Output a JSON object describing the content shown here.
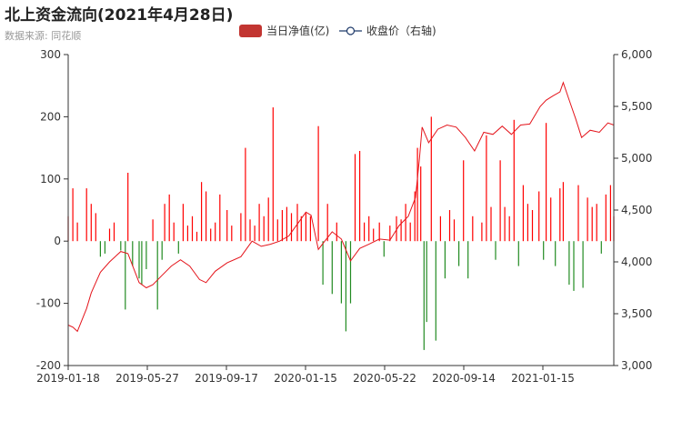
{
  "title": "北上资金流向(2021年4月28日)",
  "subtitle": "数据来源: 同花顺",
  "colors": {
    "inflow": "#ff0000",
    "outflow": "#228b22",
    "close_line": "#e4141b",
    "legend_bar": "#c23531",
    "axis": "#333333"
  },
  "chart_data": {
    "type": "bar",
    "legend": [
      {
        "name": "当日净值(亿)",
        "marker": "bar"
      },
      {
        "name": "收盘价（右轴)",
        "marker": "line"
      }
    ],
    "legend_position": "top-center",
    "x_axis": {
      "tick_labels": [
        "2019-01-18",
        "2019-05-27",
        "2019-09-17",
        "2020-01-15",
        "2020-05-22",
        "2020-09-14",
        "2021-01-15"
      ],
      "start": "2019-01-18",
      "end": "2021-04-28"
    },
    "y_left": {
      "ylim": [
        -200,
        300
      ],
      "ticks": [
        -200,
        -100,
        0,
        100,
        200,
        300
      ]
    },
    "y_right": {
      "ylim": [
        3000,
        6000
      ],
      "ticks": [
        "3,000",
        "3,500",
        "4,000",
        "4,500",
        "5,000",
        "5,500",
        "6,000"
      ]
    },
    "close_series": {
      "name": "收盘价（右轴)",
      "points": [
        [
          "2019-01-18",
          3390
        ],
        [
          "2019-01-25",
          3370
        ],
        [
          "2019-02-01",
          3330
        ],
        [
          "2019-02-15",
          3550
        ],
        [
          "2019-02-22",
          3700
        ],
        [
          "2019-03-01",
          3800
        ],
        [
          "2019-03-08",
          3900
        ],
        [
          "2019-03-22",
          4000
        ],
        [
          "2019-04-08",
          4100
        ],
        [
          "2019-04-19",
          4080
        ],
        [
          "2019-05-06",
          3800
        ],
        [
          "2019-05-17",
          3750
        ],
        [
          "2019-05-27",
          3780
        ],
        [
          "2019-06-10",
          3870
        ],
        [
          "2019-06-24",
          3960
        ],
        [
          "2019-07-08",
          4020
        ],
        [
          "2019-07-22",
          3960
        ],
        [
          "2019-08-06",
          3830
        ],
        [
          "2019-08-16",
          3800
        ],
        [
          "2019-08-30",
          3910
        ],
        [
          "2019-09-17",
          3990
        ],
        [
          "2019-10-08",
          4050
        ],
        [
          "2019-10-25",
          4200
        ],
        [
          "2019-11-08",
          4150
        ],
        [
          "2019-11-22",
          4170
        ],
        [
          "2019-12-06",
          4200
        ],
        [
          "2019-12-20",
          4250
        ],
        [
          "2020-01-06",
          4400
        ],
        [
          "2020-01-15",
          4480
        ],
        [
          "2020-01-23",
          4450
        ],
        [
          "2020-02-03",
          4120
        ],
        [
          "2020-02-14",
          4210
        ],
        [
          "2020-02-24",
          4290
        ],
        [
          "2020-03-09",
          4220
        ],
        [
          "2020-03-23",
          4010
        ],
        [
          "2020-04-06",
          4130
        ],
        [
          "2020-04-20",
          4170
        ],
        [
          "2020-05-06",
          4220
        ],
        [
          "2020-05-22",
          4210
        ],
        [
          "2020-06-05",
          4350
        ],
        [
          "2020-06-19",
          4440
        ],
        [
          "2020-06-30",
          4620
        ],
        [
          "2020-07-06",
          5000
        ],
        [
          "2020-07-10",
          5300
        ],
        [
          "2020-07-20",
          5150
        ],
        [
          "2020-08-03",
          5280
        ],
        [
          "2020-08-17",
          5320
        ],
        [
          "2020-08-31",
          5300
        ],
        [
          "2020-09-14",
          5200
        ],
        [
          "2020-09-28",
          5070
        ],
        [
          "2020-10-12",
          5250
        ],
        [
          "2020-10-26",
          5230
        ],
        [
          "2020-11-09",
          5310
        ],
        [
          "2020-11-23",
          5230
        ],
        [
          "2020-12-07",
          5320
        ],
        [
          "2020-12-21",
          5330
        ],
        [
          "2021-01-06",
          5500
        ],
        [
          "2021-01-15",
          5560
        ],
        [
          "2021-01-25",
          5600
        ],
        [
          "2021-02-05",
          5640
        ],
        [
          "2021-02-10",
          5730
        ],
        [
          "2021-02-18",
          5580
        ],
        [
          "2021-03-01",
          5380
        ],
        [
          "2021-03-10",
          5200
        ],
        [
          "2021-03-23",
          5270
        ],
        [
          "2021-04-06",
          5250
        ],
        [
          "2021-04-19",
          5340
        ],
        [
          "2021-04-28",
          5320
        ]
      ]
    },
    "net_flow_series": {
      "name": "当日净值(亿)",
      "points": [
        [
          "2019-01-18",
          40
        ],
        [
          "2019-01-25",
          85
        ],
        [
          "2019-02-01",
          30
        ],
        [
          "2019-02-15",
          85
        ],
        [
          "2019-02-22",
          60
        ],
        [
          "2019-03-01",
          45
        ],
        [
          "2019-03-08",
          -25
        ],
        [
          "2019-03-15",
          -20
        ],
        [
          "2019-03-22",
          20
        ],
        [
          "2019-03-29",
          30
        ],
        [
          "2019-04-08",
          -15
        ],
        [
          "2019-04-15",
          -110
        ],
        [
          "2019-04-19",
          110
        ],
        [
          "2019-04-26",
          -40
        ],
        [
          "2019-05-06",
          -60
        ],
        [
          "2019-05-10",
          -70
        ],
        [
          "2019-05-17",
          -45
        ],
        [
          "2019-05-27",
          35
        ],
        [
          "2019-06-03",
          -110
        ],
        [
          "2019-06-10",
          -30
        ],
        [
          "2019-06-14",
          60
        ],
        [
          "2019-06-21",
          75
        ],
        [
          "2019-06-28",
          30
        ],
        [
          "2019-07-05",
          -20
        ],
        [
          "2019-07-12",
          60
        ],
        [
          "2019-07-19",
          25
        ],
        [
          "2019-07-26",
          40
        ],
        [
          "2019-08-02",
          15
        ],
        [
          "2019-08-09",
          95
        ],
        [
          "2019-08-16",
          80
        ],
        [
          "2019-08-23",
          20
        ],
        [
          "2019-08-30",
          30
        ],
        [
          "2019-09-06",
          75
        ],
        [
          "2019-09-17",
          50
        ],
        [
          "2019-09-24",
          25
        ],
        [
          "2019-10-08",
          45
        ],
        [
          "2019-10-15",
          150
        ],
        [
          "2019-10-22",
          35
        ],
        [
          "2019-10-29",
          25
        ],
        [
          "2019-11-05",
          60
        ],
        [
          "2019-11-12",
          40
        ],
        [
          "2019-11-19",
          70
        ],
        [
          "2019-11-26",
          215
        ],
        [
          "2019-12-03",
          35
        ],
        [
          "2019-12-10",
          50
        ],
        [
          "2019-12-17",
          55
        ],
        [
          "2019-12-24",
          45
        ],
        [
          "2020-01-02",
          60
        ],
        [
          "2020-01-08",
          40
        ],
        [
          "2020-01-15",
          45
        ],
        [
          "2020-01-22",
          40
        ],
        [
          "2020-02-03",
          185
        ],
        [
          "2020-02-10",
          -70
        ],
        [
          "2020-02-17",
          60
        ],
        [
          "2020-02-24",
          -85
        ],
        [
          "2020-03-02",
          30
        ],
        [
          "2020-03-09",
          -100
        ],
        [
          "2020-03-16",
          -145
        ],
        [
          "2020-03-23",
          -100
        ],
        [
          "2020-03-30",
          140
        ],
        [
          "2020-04-06",
          145
        ],
        [
          "2020-04-13",
          30
        ],
        [
          "2020-04-20",
          40
        ],
        [
          "2020-04-27",
          20
        ],
        [
          "2020-05-06",
          30
        ],
        [
          "2020-05-13",
          -25
        ],
        [
          "2020-05-22",
          25
        ],
        [
          "2020-06-01",
          40
        ],
        [
          "2020-06-08",
          35
        ],
        [
          "2020-06-15",
          60
        ],
        [
          "2020-06-22",
          30
        ],
        [
          "2020-06-29",
          80
        ],
        [
          "2020-07-03",
          150
        ],
        [
          "2020-07-08",
          120
        ],
        [
          "2020-07-13",
          -175
        ],
        [
          "2020-07-17",
          -130
        ],
        [
          "2020-07-24",
          200
        ],
        [
          "2020-07-31",
          -160
        ],
        [
          "2020-08-07",
          40
        ],
        [
          "2020-08-14",
          -60
        ],
        [
          "2020-08-21",
          50
        ],
        [
          "2020-08-28",
          35
        ],
        [
          "2020-09-04",
          -40
        ],
        [
          "2020-09-11",
          130
        ],
        [
          "2020-09-18",
          -60
        ],
        [
          "2020-09-25",
          40
        ],
        [
          "2020-10-09",
          30
        ],
        [
          "2020-10-16",
          170
        ],
        [
          "2020-10-23",
          55
        ],
        [
          "2020-10-30",
          -30
        ],
        [
          "2020-11-06",
          130
        ],
        [
          "2020-11-13",
          55
        ],
        [
          "2020-11-20",
          40
        ],
        [
          "2020-11-27",
          195
        ],
        [
          "2020-12-04",
          -40
        ],
        [
          "2020-12-11",
          90
        ],
        [
          "2020-12-18",
          60
        ],
        [
          "2020-12-25",
          50
        ],
        [
          "2021-01-04",
          80
        ],
        [
          "2021-01-11",
          -30
        ],
        [
          "2021-01-15",
          190
        ],
        [
          "2021-01-22",
          70
        ],
        [
          "2021-01-29",
          -40
        ],
        [
          "2021-02-05",
          85
        ],
        [
          "2021-02-10",
          95
        ],
        [
          "2021-02-19",
          -70
        ],
        [
          "2021-02-26",
          -80
        ],
        [
          "2021-03-05",
          90
        ],
        [
          "2021-03-12",
          -75
        ],
        [
          "2021-03-19",
          70
        ],
        [
          "2021-03-26",
          55
        ],
        [
          "2021-04-02",
          60
        ],
        [
          "2021-04-09",
          -20
        ],
        [
          "2021-04-16",
          75
        ],
        [
          "2021-04-23",
          90
        ],
        [
          "2021-04-28",
          40
        ]
      ]
    }
  }
}
